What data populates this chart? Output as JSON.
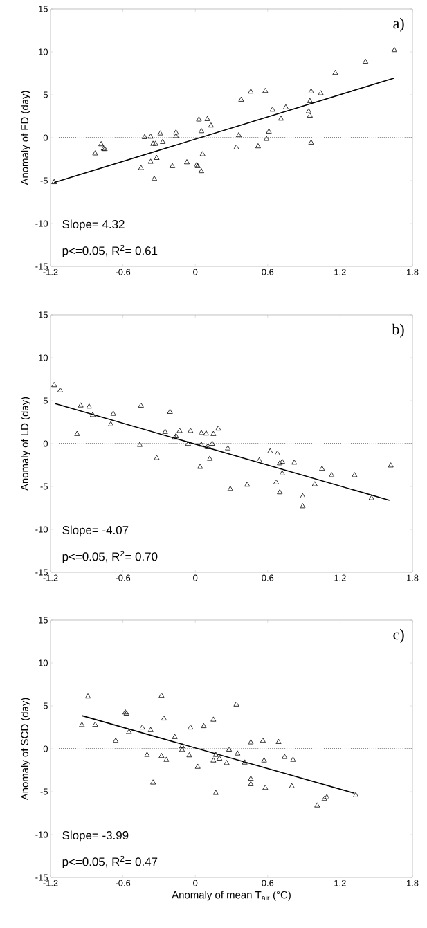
{
  "chart_data": [
    {
      "type": "scatter",
      "ylabel": "Anomaly of FD (day)",
      "xlim": [
        -1.2,
        1.8
      ],
      "ylim": [
        -15,
        15
      ],
      "xticks": [
        -1.2,
        -0.6,
        0,
        0.6,
        1.2,
        1.8
      ],
      "yticks": [
        -15,
        -10,
        -5,
        0,
        5,
        10,
        15
      ],
      "annotations": [
        "a)",
        "Slope=  4.32",
        "p<=0.05, R$^{2}$= 0.61"
      ],
      "ref_lines": [
        {
          "axis": "y",
          "value": 0,
          "line_style": "dotted"
        }
      ],
      "series": [
        {
          "marker": "triangle",
          "color": "#000000",
          "x": [
            -1.17,
            -0.83,
            -0.78,
            -0.76,
            -0.75,
            -0.45,
            -0.42,
            -0.37,
            -0.37,
            -0.34,
            -0.35,
            -0.33,
            -0.32,
            -0.29,
            -0.27,
            -0.19,
            -0.16,
            -0.16,
            -0.07,
            0.01,
            0.02,
            0.03,
            0.05,
            0.06,
            0.05,
            0.1,
            0.13,
            0.34,
            0.36,
            0.38,
            0.46,
            0.52,
            0.58,
            0.59,
            0.61,
            0.64,
            0.71,
            0.75,
            0.94,
            0.95,
            0.95,
            0.96,
            0.96,
            1.04,
            1.16,
            1.41,
            1.65
          ],
          "values": [
            -5.2,
            -1.85,
            -0.78,
            -1.29,
            -1.34,
            -3.55,
            0.05,
            -2.82,
            0.1,
            -4.81,
            -0.73,
            -0.73,
            -2.37,
            0.48,
            -0.51,
            -3.33,
            0.59,
            0.16,
            -2.88,
            -3.23,
            -3.33,
            2.1,
            -3.92,
            -1.94,
            0.75,
            2.15,
            1.4,
            -1.16,
            0.27,
            4.41,
            5.35,
            -1.02,
            5.43,
            -0.16,
            0.7,
            3.25,
            2.2,
            3.52,
            3.06,
            2.55,
            4.25,
            5.38,
            -0.59,
            5.16,
            7.53,
            8.84,
            10.19
          ]
        },
        {
          "type": "line",
          "marker": "none",
          "line_style": "solid",
          "color": "#000000",
          "x": [
            -1.17,
            1.65
          ],
          "values": [
            -5.22,
            6.96
          ]
        }
      ]
    },
    {
      "type": "scatter",
      "ylabel": "Anomaly of LD (day)",
      "xlim": [
        -1.2,
        1.8
      ],
      "ylim": [
        -15,
        15
      ],
      "xticks": [
        -1.2,
        -0.6,
        0,
        0.6,
        1.2,
        1.8
      ],
      "yticks": [
        -15,
        -10,
        -5,
        0,
        5,
        10,
        15
      ],
      "annotations": [
        "b)",
        "Slope= -4.07",
        "p<=0.05, R$^{2}$= 0.70"
      ],
      "ref_lines": [
        {
          "axis": "y",
          "value": 0,
          "line_style": "dotted"
        }
      ],
      "series": [
        {
          "marker": "triangle",
          "color": "#000000",
          "x": [
            -1.17,
            -1.12,
            -0.98,
            -0.95,
            -0.88,
            -0.85,
            -0.7,
            -0.68,
            -0.46,
            -0.45,
            -0.32,
            -0.25,
            -0.21,
            -0.17,
            -0.16,
            -0.13,
            -0.06,
            -0.04,
            0.04,
            0.05,
            0.05,
            0.09,
            0.1,
            0.11,
            0.12,
            0.14,
            0.15,
            0.19,
            0.27,
            0.29,
            0.43,
            0.53,
            0.62,
            0.67,
            0.68,
            0.7,
            0.72,
            0.7,
            0.72,
            0.82,
            0.89,
            0.89,
            0.99,
            1.05,
            1.13,
            1.32,
            1.46,
            1.62
          ],
          "values": [
            6.8,
            6.19,
            1.11,
            4.43,
            4.3,
            3.32,
            2.24,
            3.46,
            -0.16,
            4.41,
            -1.7,
            1.35,
            3.68,
            0.68,
            0.86,
            1.46,
            -0.05,
            1.46,
            -2.73,
            1.22,
            -0.14,
            1.16,
            -0.41,
            -0.41,
            -1.78,
            -0.03,
            1.11,
            1.73,
            -0.57,
            -5.3,
            -4.81,
            -1.97,
            -0.92,
            -4.54,
            -1.16,
            -2.32,
            -2.14,
            -5.7,
            -3.49,
            -2.24,
            -6.16,
            -7.32,
            -4.76,
            -2.95,
            -3.7,
            -3.7,
            -6.38,
            -2.57
          ]
        },
        {
          "type": "line",
          "marker": "none",
          "line_style": "solid",
          "color": "#000000",
          "x": [
            -1.16,
            1.61
          ],
          "values": [
            4.65,
            -6.62
          ]
        }
      ]
    },
    {
      "type": "scatter",
      "xlabel": "Anomaly of mean T$_{air}$ (°C)",
      "ylabel": "Anomaly of SCD (day)",
      "xlim": [
        -1.2,
        1.8
      ],
      "ylim": [
        -15,
        15
      ],
      "xticks": [
        -1.2,
        -0.6,
        0,
        0.6,
        1.2,
        1.8
      ],
      "yticks": [
        -15,
        -10,
        -5,
        0,
        5,
        10,
        15
      ],
      "annotations": [
        "c)",
        "Slope= -3.99",
        "p<=0.05, R$^{2}$= 0.47"
      ],
      "ref_lines": [
        {
          "axis": "y",
          "value": 0,
          "line_style": "dotted"
        }
      ],
      "series": [
        {
          "marker": "triangle",
          "color": "#000000",
          "x": [
            -0.94,
            -0.89,
            -0.83,
            -0.66,
            -0.58,
            -0.57,
            -0.55,
            -0.44,
            -0.4,
            -0.37,
            -0.35,
            -0.28,
            -0.28,
            -0.26,
            -0.24,
            -0.17,
            -0.11,
            -0.11,
            -0.05,
            -0.04,
            0.02,
            0.07,
            0.15,
            0.15,
            0.17,
            0.17,
            0.2,
            0.26,
            0.28,
            0.34,
            0.35,
            0.41,
            0.46,
            0.46,
            0.46,
            0.56,
            0.57,
            0.58,
            0.69,
            0.74,
            0.8,
            0.81,
            1.01,
            1.07,
            1.09,
            1.33
          ],
          "values": [
            2.76,
            6.08,
            2.78,
            0.92,
            4.22,
            4.08,
            1.95,
            2.46,
            -0.73,
            2.16,
            -3.95,
            -0.86,
            6.16,
            3.51,
            -1.3,
            1.35,
            0.27,
            -0.14,
            -0.78,
            2.46,
            -2.11,
            2.62,
            -1.38,
            3.38,
            -0.73,
            -5.16,
            -1.16,
            -1.68,
            -0.11,
            5.14,
            -0.57,
            -1.62,
            -3.51,
            -4.14,
            0.73,
            0.92,
            -1.38,
            -4.57,
            0.78,
            -0.97,
            -4.38,
            -1.3,
            -6.62,
            -5.86,
            -5.65,
            -5.43
          ]
        },
        {
          "type": "line",
          "marker": "none",
          "line_style": "solid",
          "color": "#000000",
          "x": [
            -0.94,
            1.32
          ],
          "values": [
            3.86,
            -5.19
          ]
        }
      ]
    }
  ]
}
